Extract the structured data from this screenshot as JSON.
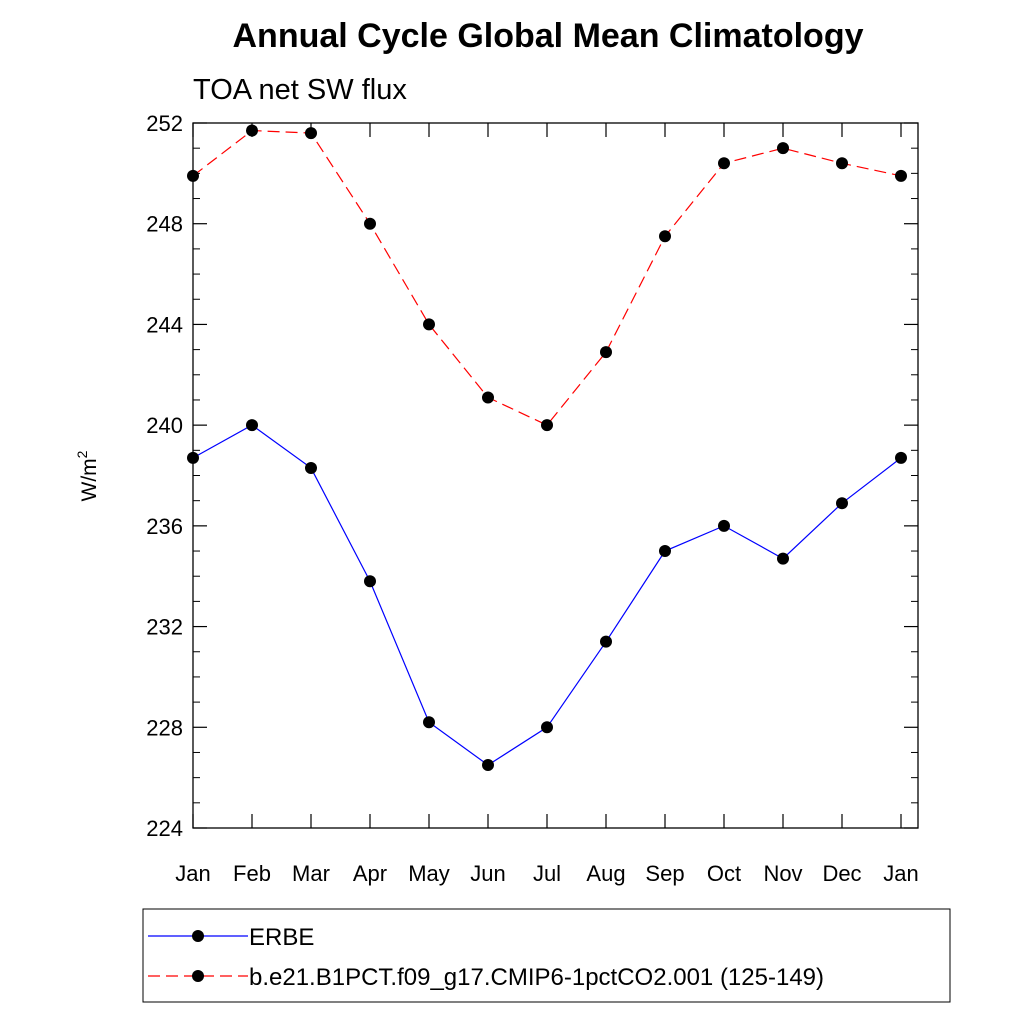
{
  "chart_data": {
    "type": "line",
    "title": "Annual Cycle Global Mean Climatology",
    "subtitle": "TOA net SW flux",
    "xlabel": "",
    "ylabel": "W/m",
    "ylabel_superscript": "2",
    "categories": [
      "Jan",
      "Feb",
      "Mar",
      "Apr",
      "May",
      "Jun",
      "Jul",
      "Aug",
      "Sep",
      "Oct",
      "Nov",
      "Dec",
      "Jan"
    ],
    "ylim": [
      224,
      252
    ],
    "yticks": [
      224,
      228,
      232,
      236,
      240,
      244,
      248,
      252
    ],
    "ytick_labels": [
      "224",
      "228",
      "232",
      "236",
      "240",
      "244",
      "248",
      "252"
    ],
    "grid": false,
    "legend_position": "bottom",
    "series": [
      {
        "name": "ERBE",
        "color": "#0000ff",
        "line_style": "solid",
        "marker": "filled-circle",
        "values": [
          238.7,
          240.0,
          238.3,
          233.8,
          228.2,
          226.5,
          228.0,
          231.4,
          235.0,
          236.0,
          234.7,
          236.9,
          238.7
        ]
      },
      {
        "name": "b.e21.B1PCT.f09_g17.CMIP6-1pctCO2.001 (125-149)",
        "color": "#ff0000",
        "line_style": "dashed",
        "marker": "filled-circle",
        "values": [
          249.9,
          251.7,
          251.6,
          248.0,
          244.0,
          241.1,
          240.0,
          242.9,
          247.5,
          250.4,
          251.0,
          250.4,
          249.9
        ]
      }
    ]
  }
}
